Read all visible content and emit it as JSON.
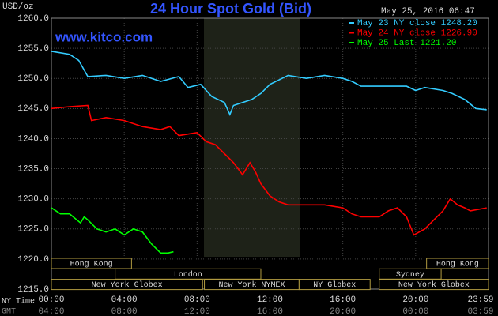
{
  "chart_data": {
    "type": "line",
    "title": "24 Hour Spot Gold (Bid)",
    "y_unit": "USD/oz",
    "timestamp": "May 25, 2016 06:47",
    "watermark": "www.kitco.com",
    "ylim": [
      1215,
      1260
    ],
    "yticks": [
      {
        "value": 1260,
        "label": "1260.0"
      },
      {
        "value": 1255,
        "label": "1255.0"
      },
      {
        "value": 1250,
        "label": "1250.0"
      },
      {
        "value": 1245,
        "label": "1245.0"
      },
      {
        "value": 1240,
        "label": "1240.0"
      },
      {
        "value": 1235,
        "label": "1235.0"
      },
      {
        "value": 1230,
        "label": "1230.0"
      },
      {
        "value": 1225,
        "label": "1225.0"
      },
      {
        "value": 1220,
        "label": "1220.0"
      },
      {
        "value": 1215,
        "label": "1215.0"
      }
    ],
    "xlim": [
      0,
      24
    ],
    "xticks": [
      {
        "value": 0,
        "label": "00:00"
      },
      {
        "value": 4,
        "label": "04:00"
      },
      {
        "value": 8,
        "label": "08:00"
      },
      {
        "value": 12,
        "label": "12:00"
      },
      {
        "value": 16,
        "label": "16:00"
      },
      {
        "value": 20,
        "label": "20:00"
      },
      {
        "value": 23.98,
        "label": "23:59"
      }
    ],
    "gmt_tick_labels": [
      "04:00",
      "08:00",
      "12:00",
      "16:00",
      "20:00",
      "00:00",
      "03:59"
    ],
    "x_row_labels": [
      "NY Time",
      "GMT"
    ],
    "grid": true,
    "series": [
      {
        "name": "May 23 NY close 1248.20",
        "color": "#33ccff",
        "x": [
          0,
          1,
          1.5,
          2,
          3,
          4,
          5,
          6,
          7,
          7.5,
          8.2,
          8.8,
          9.5,
          9.8,
          10,
          11,
          11.5,
          12,
          13,
          14,
          15,
          16,
          16.5,
          17,
          19.5,
          20,
          20.5,
          21.5,
          22,
          22.7,
          23.3,
          23.9
        ],
        "values": [
          1254.5,
          1254,
          1253,
          1250.3,
          1250.5,
          1250,
          1250.5,
          1249.5,
          1250.3,
          1248.5,
          1249,
          1247,
          1246,
          1244,
          1245.5,
          1246.5,
          1247.5,
          1249,
          1250.5,
          1250,
          1250.5,
          1250,
          1249.5,
          1248.7,
          1248.7,
          1248,
          1248.5,
          1248,
          1247.5,
          1246.5,
          1245,
          1244.8
        ]
      },
      {
        "name": "May 24 NY close 1226.90",
        "color": "#ff0000",
        "x": [
          0,
          1,
          2,
          2.2,
          3,
          4,
          5,
          6,
          6.5,
          7,
          8,
          8.5,
          9,
          9.5,
          10,
          10.5,
          10.9,
          11.2,
          11.5,
          12,
          12.5,
          13,
          15,
          16,
          16.5,
          17,
          18,
          18.5,
          19,
          19.5,
          19.9,
          20.5,
          21,
          21.5,
          21.9,
          22.3,
          22.7,
          23,
          23.9
        ],
        "values": [
          1245,
          1245.3,
          1245.5,
          1243,
          1243.5,
          1243,
          1242,
          1241.5,
          1242,
          1240.5,
          1241,
          1239.5,
          1239,
          1237.5,
          1236,
          1234,
          1236,
          1234.5,
          1232.5,
          1230.5,
          1229.5,
          1229,
          1229,
          1228.5,
          1227.5,
          1227,
          1227,
          1228,
          1228.5,
          1227,
          1224,
          1225,
          1226.5,
          1228,
          1230,
          1229,
          1228.5,
          1228,
          1228.5
        ]
      },
      {
        "name": "May 25 Last 1221.20",
        "color": "#00ff00",
        "x": [
          0,
          0.5,
          1,
          1.6,
          1.8,
          2,
          2.5,
          3,
          3.5,
          4,
          4.5,
          5,
          5.5,
          6,
          6.4,
          6.7
        ],
        "values": [
          1228.5,
          1227.5,
          1227.5,
          1226,
          1227,
          1226.5,
          1225,
          1224.5,
          1225,
          1224,
          1225,
          1224.5,
          1222.5,
          1221,
          1221,
          1221.2
        ]
      }
    ],
    "sessions": [
      {
        "label": "Hong Kong",
        "row": 0,
        "start": 0,
        "end": 4.4
      },
      {
        "label": "Hong Kong",
        "row": 0,
        "start": 20.6,
        "end": 24
      },
      {
        "label": "London",
        "row": 1,
        "start": 3.5,
        "end": 11.5
      },
      {
        "label": "Sydney",
        "row": 1,
        "start": 18,
        "end": 21.4
      },
      {
        "label": "New York Globex",
        "row": 2,
        "start": 0,
        "end": 8.3
      },
      {
        "label": "New York NYMEX",
        "row": 2,
        "start": 8.4,
        "end": 13.6
      },
      {
        "label": "NY Globex",
        "row": 2,
        "start": 13.6,
        "end": 17.5
      },
      {
        "label": "New York Globex",
        "row": 2,
        "start": 18,
        "end": 24
      }
    ]
  }
}
